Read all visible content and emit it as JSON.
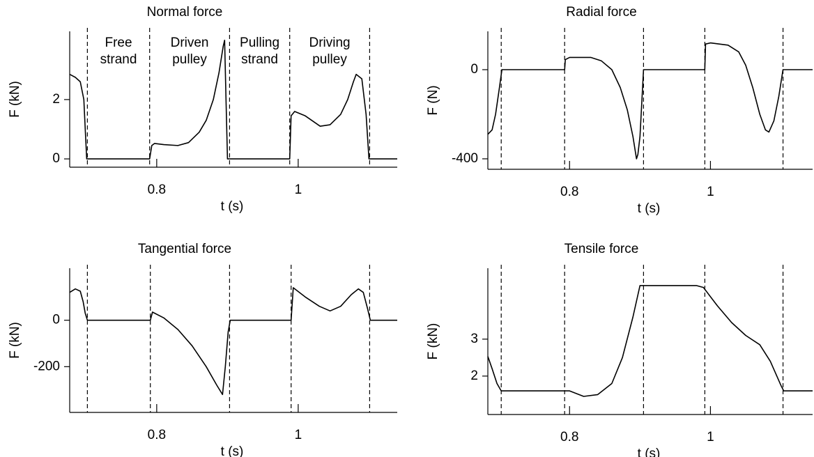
{
  "chart_data": [
    {
      "type": "line",
      "title": "Normal force",
      "xlabel": "t (s)",
      "ylabel": "F (kN)",
      "x": [
        0.677,
        0.685,
        0.692,
        0.697,
        0.699,
        0.701,
        0.79,
        0.793,
        0.797,
        0.81,
        0.83,
        0.845,
        0.86,
        0.87,
        0.88,
        0.888,
        0.894,
        0.896,
        0.898,
        0.9,
        0.988,
        0.99,
        0.995,
        1.01,
        1.031,
        1.045,
        1.06,
        1.07,
        1.078,
        1.082,
        1.09,
        1.096,
        1.1,
        1.14
      ],
      "values": [
        2.85,
        2.75,
        2.6,
        2.0,
        1.0,
        0,
        0,
        0.45,
        0.52,
        0.48,
        0.45,
        0.55,
        0.9,
        1.3,
        2.0,
        2.9,
        3.8,
        4.0,
        2.0,
        0,
        0,
        1.45,
        1.6,
        1.45,
        1.1,
        1.15,
        1.5,
        2.0,
        2.6,
        2.85,
        2.7,
        1.5,
        0,
        0
      ],
      "color": "#000000",
      "xlim": [
        0.677,
        1.14
      ],
      "ylim": [
        -0.28,
        4.3
      ],
      "xticks": [
        0.8,
        1.0
      ],
      "yticks": [
        0,
        2
      ],
      "vlines": [
        0.702,
        0.79,
        0.903,
        0.988,
        1.101
      ],
      "annotations": [
        "Free strand",
        "Driven pulley",
        "Pulling strand",
        "Driving pulley"
      ]
    },
    {
      "type": "line",
      "title": "Radial force",
      "xlabel": "t (s)",
      "ylabel": "F (N)",
      "x": [
        0.684,
        0.69,
        0.695,
        0.7,
        0.704,
        0.793,
        0.794,
        0.8,
        0.83,
        0.845,
        0.86,
        0.872,
        0.882,
        0.89,
        0.895,
        0.897,
        0.9,
        0.905,
        0.992,
        0.993,
        1.0,
        1.025,
        1.04,
        1.05,
        1.06,
        1.07,
        1.078,
        1.083,
        1.09,
        1.097,
        1.103,
        1.145
      ],
      "values": [
        -290,
        -270,
        -200,
        -90,
        0,
        0,
        45,
        55,
        55,
        40,
        0,
        -80,
        -180,
        -300,
        -400,
        -380,
        -300,
        0,
        0,
        115,
        120,
        110,
        80,
        20,
        -80,
        -200,
        -270,
        -280,
        -230,
        -120,
        0,
        0
      ],
      "color": "#000000",
      "xlim": [
        0.684,
        1.145
      ],
      "ylim": [
        -447,
        172
      ],
      "xticks": [
        0.8,
        1.0
      ],
      "yticks": [
        -400,
        0
      ],
      "vlines": [
        0.703,
        0.793,
        0.905,
        0.992,
        1.103
      ]
    },
    {
      "type": "line",
      "title": "Tangential force",
      "xlabel": "t (s)",
      "ylabel": "F (kN)",
      "x": [
        0.677,
        0.685,
        0.692,
        0.696,
        0.699,
        0.702,
        0.791,
        0.794,
        0.81,
        0.83,
        0.85,
        0.87,
        0.885,
        0.893,
        0.897,
        0.901,
        0.904,
        0.99,
        0.993,
        1.01,
        1.03,
        1.045,
        1.06,
        1.075,
        1.085,
        1.092,
        1.098,
        1.102,
        1.14
      ],
      "values": [
        120,
        135,
        125,
        80,
        30,
        0,
        0,
        35,
        10,
        -40,
        -110,
        -200,
        -280,
        -320,
        -200,
        -50,
        0,
        0,
        140,
        100,
        60,
        40,
        60,
        110,
        135,
        120,
        50,
        0,
        0
      ],
      "color": "#000000",
      "xlim": [
        0.677,
        1.14
      ],
      "ylim": [
        -397,
        224
      ],
      "xticks": [
        0.8,
        1.0
      ],
      "yticks": [
        -200,
        0
      ],
      "vlines": [
        0.702,
        0.791,
        0.903,
        0.99,
        1.101
      ]
    },
    {
      "type": "line",
      "title": "Tensile force",
      "xlabel": "t (s)",
      "ylabel": "F (kN)",
      "x": [
        0.684,
        0.69,
        0.697,
        0.703,
        0.79,
        0.8,
        0.82,
        0.84,
        0.86,
        0.875,
        0.89,
        0.9,
        0.98,
        0.99,
        1.01,
        1.03,
        1.05,
        1.07,
        1.085,
        1.1,
        1.104,
        1.145
      ],
      "values": [
        2.53,
        2.2,
        1.8,
        1.6,
        1.6,
        1.6,
        1.45,
        1.5,
        1.8,
        2.5,
        3.6,
        4.45,
        4.45,
        4.4,
        3.9,
        3.45,
        3.1,
        2.85,
        2.4,
        1.75,
        1.6,
        1.6
      ],
      "color": "#000000",
      "xlim": [
        0.684,
        1.145
      ],
      "ylim": [
        0.96,
        4.92
      ],
      "xticks": [
        0.8,
        1.0
      ],
      "yticks": [
        2,
        3
      ],
      "vlines": [
        0.703,
        0.793,
        0.905,
        0.992,
        1.103
      ]
    }
  ]
}
